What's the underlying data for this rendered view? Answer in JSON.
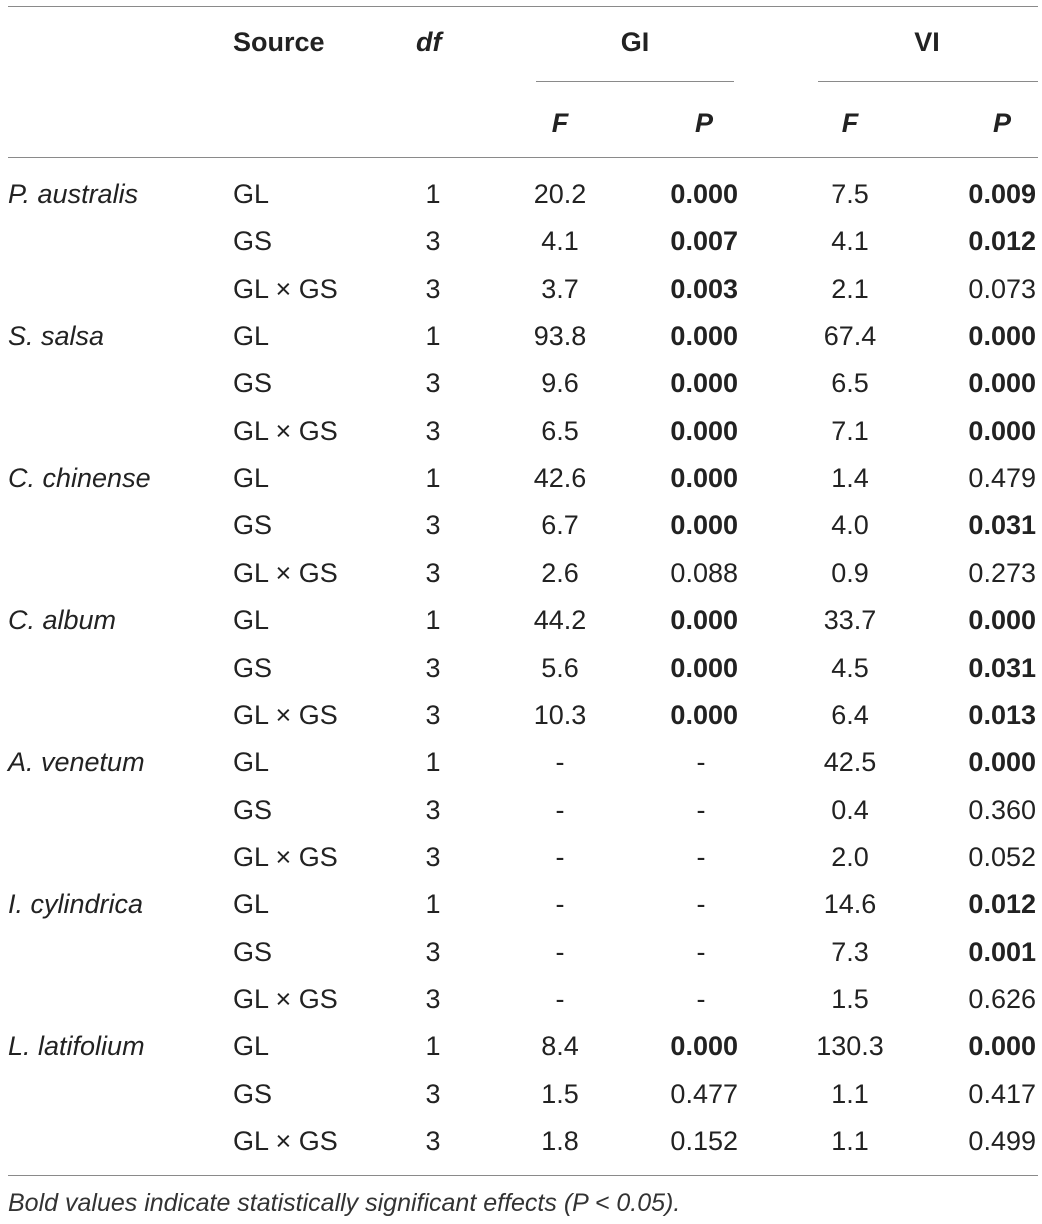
{
  "header": {
    "source": "Source",
    "df": "df",
    "gi": "GI",
    "vi": "VI",
    "f": "F",
    "p": "P"
  },
  "rows": [
    {
      "species": "P. australis",
      "source": "GL",
      "df": "1",
      "gi_f": "20.2",
      "gi_p": "0.000",
      "gi_p_sig": true,
      "vi_f": "7.5",
      "vi_p": "0.009",
      "vi_p_sig": true
    },
    {
      "species": "",
      "source": "GS",
      "df": "3",
      "gi_f": "4.1",
      "gi_p": "0.007",
      "gi_p_sig": true,
      "vi_f": "4.1",
      "vi_p": "0.012",
      "vi_p_sig": true
    },
    {
      "species": "",
      "source": "GL × GS",
      "df": "3",
      "gi_f": "3.7",
      "gi_p": "0.003",
      "gi_p_sig": true,
      "vi_f": "2.1",
      "vi_p": "0.073",
      "vi_p_sig": false
    },
    {
      "species": "S. salsa",
      "source": "GL",
      "df": "1",
      "gi_f": "93.8",
      "gi_p": "0.000",
      "gi_p_sig": true,
      "vi_f": "67.4",
      "vi_p": "0.000",
      "vi_p_sig": true
    },
    {
      "species": "",
      "source": "GS",
      "df": "3",
      "gi_f": "9.6",
      "gi_p": "0.000",
      "gi_p_sig": true,
      "vi_f": "6.5",
      "vi_p": "0.000",
      "vi_p_sig": true
    },
    {
      "species": "",
      "source": "GL × GS",
      "df": "3",
      "gi_f": "6.5",
      "gi_p": "0.000",
      "gi_p_sig": true,
      "vi_f": "7.1",
      "vi_p": "0.000",
      "vi_p_sig": true
    },
    {
      "species": "C. chinense",
      "source": "GL",
      "df": "1",
      "gi_f": "42.6",
      "gi_p": "0.000",
      "gi_p_sig": true,
      "vi_f": "1.4",
      "vi_p": "0.479",
      "vi_p_sig": false
    },
    {
      "species": "",
      "source": "GS",
      "df": "3",
      "gi_f": "6.7",
      "gi_p": "0.000",
      "gi_p_sig": true,
      "vi_f": "4.0",
      "vi_p": "0.031",
      "vi_p_sig": true
    },
    {
      "species": "",
      "source": "GL × GS",
      "df": "3",
      "gi_f": "2.6",
      "gi_p": "0.088",
      "gi_p_sig": false,
      "vi_f": "0.9",
      "vi_p": "0.273",
      "vi_p_sig": false
    },
    {
      "species": "C. album",
      "source": "GL",
      "df": "1",
      "gi_f": "44.2",
      "gi_p": "0.000",
      "gi_p_sig": true,
      "vi_f": "33.7",
      "vi_p": "0.000",
      "vi_p_sig": true
    },
    {
      "species": "",
      "source": "GS",
      "df": "3",
      "gi_f": "5.6",
      "gi_p": "0.000",
      "gi_p_sig": true,
      "vi_f": "4.5",
      "vi_p": "0.031",
      "vi_p_sig": true
    },
    {
      "species": "",
      "source": "GL × GS",
      "df": "3",
      "gi_f": "10.3",
      "gi_p": "0.000",
      "gi_p_sig": true,
      "vi_f": "6.4",
      "vi_p": "0.013",
      "vi_p_sig": true
    },
    {
      "species": "A. venetum",
      "source": "GL",
      "df": "1",
      "gi_f": "-",
      "gi_p": "-",
      "gi_p_sig": false,
      "vi_f": "42.5",
      "vi_p": "0.000",
      "vi_p_sig": true
    },
    {
      "species": "",
      "source": "GS",
      "df": "3",
      "gi_f": "-",
      "gi_p": "-",
      "gi_p_sig": false,
      "vi_f": "0.4",
      "vi_p": "0.360",
      "vi_p_sig": false
    },
    {
      "species": "",
      "source": "GL × GS",
      "df": "3",
      "gi_f": "-",
      "gi_p": "-",
      "gi_p_sig": false,
      "vi_f": "2.0",
      "vi_p": "0.052",
      "vi_p_sig": false
    },
    {
      "species": "I. cylindrica",
      "source": "GL",
      "df": "1",
      "gi_f": "-",
      "gi_p": "-",
      "gi_p_sig": false,
      "vi_f": "14.6",
      "vi_p": "0.012",
      "vi_p_sig": true
    },
    {
      "species": "",
      "source": "GS",
      "df": "3",
      "gi_f": "-",
      "gi_p": "-",
      "gi_p_sig": false,
      "vi_f": "7.3",
      "vi_p": "0.001",
      "vi_p_sig": true
    },
    {
      "species": "",
      "source": "GL × GS",
      "df": "3",
      "gi_f": "-",
      "gi_p": "-",
      "gi_p_sig": false,
      "vi_f": "1.5",
      "vi_p": "0.626",
      "vi_p_sig": false
    },
    {
      "species": "L. latifolium",
      "source": "GL",
      "df": "1",
      "gi_f": "8.4",
      "gi_p": "0.000",
      "gi_p_sig": true,
      "vi_f": "130.3",
      "vi_p": "0.000",
      "vi_p_sig": true
    },
    {
      "species": "",
      "source": "GS",
      "df": "3",
      "gi_f": "1.5",
      "gi_p": "0.477",
      "gi_p_sig": false,
      "vi_f": "1.1",
      "vi_p": "0.417",
      "vi_p_sig": false
    },
    {
      "species": "",
      "source": "GL × GS",
      "df": "3",
      "gi_f": "1.8",
      "gi_p": "0.152",
      "gi_p_sig": false,
      "vi_f": "1.1",
      "vi_p": "0.499",
      "vi_p_sig": false
    }
  ],
  "footnote": "Bold values indicate statistically significant effects (P < 0.05)."
}
